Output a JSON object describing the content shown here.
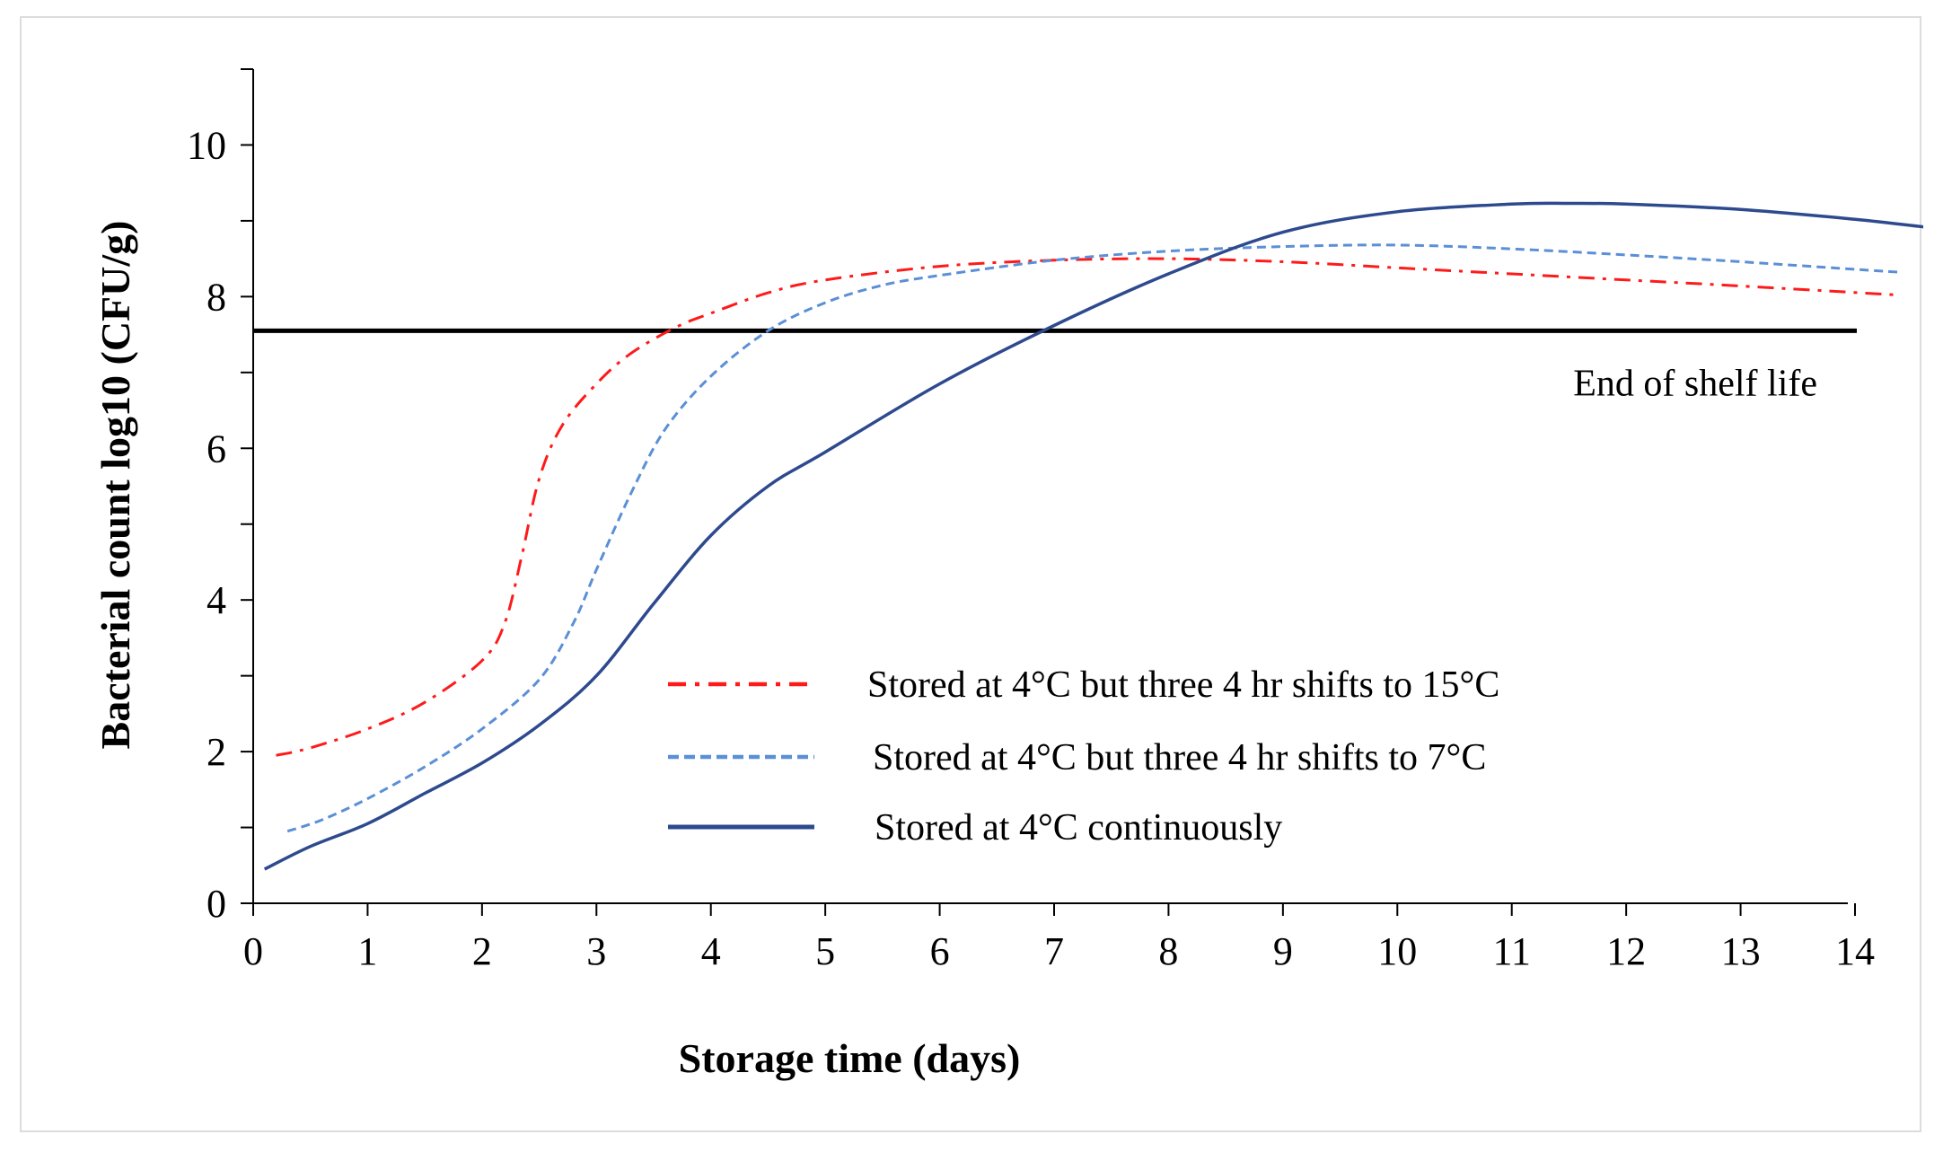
{
  "chart_data": {
    "type": "line",
    "title": "",
    "xlabel": "Storage time (days)",
    "ylabel": "Bacterial count log10 (CFU/g)",
    "xlim": [
      0,
      14
    ],
    "ylim": [
      0,
      11
    ],
    "x_ticks": [
      0,
      1,
      2,
      3,
      4,
      5,
      6,
      7,
      8,
      9,
      10,
      11,
      12,
      13,
      14
    ],
    "y_ticks": [
      0,
      2,
      4,
      6,
      8,
      10
    ],
    "x_tick_labels": [
      "0",
      "1",
      "2",
      "3",
      "4",
      "5",
      "6",
      "7",
      "8",
      "9",
      "10",
      "11",
      "12",
      "13",
      "14"
    ],
    "y_tick_labels": [
      "0",
      "2",
      "4",
      "6",
      "8",
      "10"
    ],
    "grid": false,
    "legend_position": "center-right",
    "series": [
      {
        "name": "Stored at 4°C but three 4 hr shifts to 15°C",
        "color": "#ff1a1a",
        "style": "dash-dot",
        "x": [
          0.2,
          0.5,
          1.0,
          1.5,
          2.0,
          2.2,
          2.35,
          2.5,
          2.7,
          3.0,
          3.3,
          3.7,
          4.0,
          4.5,
          5.0,
          6.0,
          7.0,
          8.0,
          9.0,
          10.0,
          11.0,
          12.0,
          13.0,
          14.4
        ],
        "values": [
          1.95,
          2.05,
          2.3,
          2.65,
          3.2,
          3.7,
          4.6,
          5.6,
          6.3,
          6.85,
          7.25,
          7.6,
          7.78,
          8.05,
          8.22,
          8.4,
          8.48,
          8.5,
          8.46,
          8.38,
          8.3,
          8.22,
          8.14,
          8.02
        ]
      },
      {
        "name": "Stored at 4°C but three 4 hr shifts to 7°C",
        "color": "#5b8fd6",
        "style": "dashed",
        "x": [
          0.3,
          0.6,
          1.0,
          1.5,
          2.0,
          2.5,
          2.8,
          3.0,
          3.3,
          3.6,
          4.0,
          4.5,
          5.0,
          5.5,
          6.0,
          7.0,
          8.0,
          9.0,
          10.0,
          11.0,
          12.0,
          13.0,
          14.4
        ],
        "values": [
          0.95,
          1.1,
          1.38,
          1.8,
          2.3,
          2.95,
          3.7,
          4.4,
          5.4,
          6.25,
          6.95,
          7.55,
          7.92,
          8.15,
          8.28,
          8.48,
          8.6,
          8.66,
          8.68,
          8.63,
          8.55,
          8.46,
          8.32
        ]
      },
      {
        "name": "Stored at 4°C continuously",
        "color": "#2e4a8e",
        "style": "solid",
        "x": [
          0.1,
          0.5,
          1.0,
          1.5,
          2.0,
          2.5,
          3.0,
          3.5,
          4.0,
          4.5,
          5.0,
          6.0,
          7.0,
          8.0,
          9.0,
          10.0,
          11.0,
          11.5,
          12.0,
          13.0,
          14.0,
          14.6
        ],
        "values": [
          0.45,
          0.75,
          1.05,
          1.45,
          1.85,
          2.35,
          3.0,
          3.95,
          4.85,
          5.5,
          5.95,
          6.85,
          7.62,
          8.3,
          8.85,
          9.12,
          9.22,
          9.23,
          9.22,
          9.15,
          9.02,
          8.92
        ]
      }
    ],
    "reference_line": {
      "y": 7.55,
      "label": "End of shelf life",
      "color": "#000000"
    }
  }
}
